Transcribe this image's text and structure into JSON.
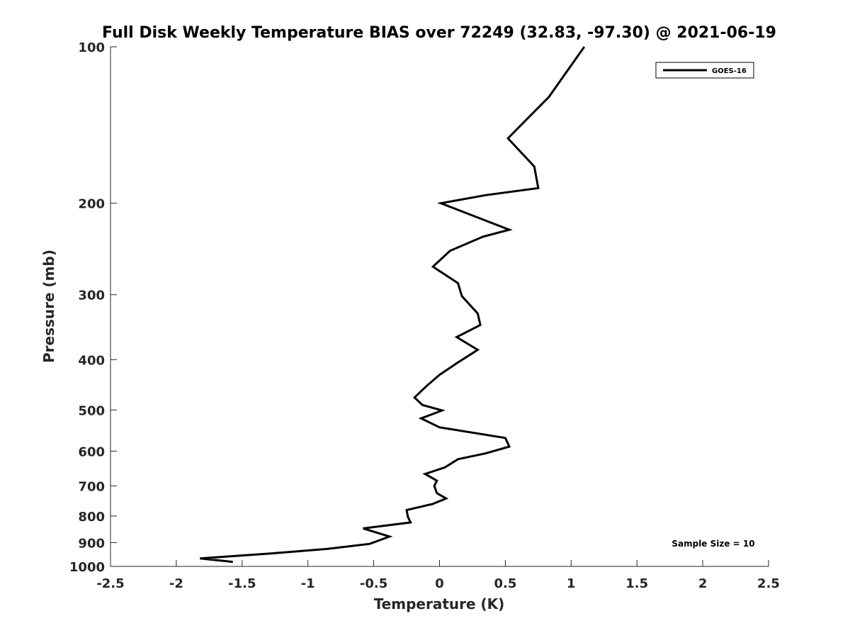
{
  "chart_data": {
    "type": "line",
    "title": "Full Disk Weekly Temperature BIAS over 72249 (32.83, -97.30) @ 2021-06-19",
    "xlabel": "Temperature (K)",
    "ylabel": "Pressure (mb)",
    "xlim": [
      -2.5,
      2.5
    ],
    "ylim": [
      100,
      1000
    ],
    "y_scale": "log",
    "y_reversed": true,
    "grid": false,
    "legend_position": "top-right",
    "x_ticks": [
      -2.5,
      -2,
      -1.5,
      -1,
      -0.5,
      0,
      0.5,
      1,
      1.5,
      2,
      2.5
    ],
    "x_tick_labels": [
      "-2.5",
      "-2",
      "-1.5",
      "-1",
      "-0.5",
      "0",
      "0.5",
      "1",
      "1.5",
      "2",
      "2.5"
    ],
    "y_ticks": [
      100,
      200,
      300,
      400,
      500,
      600,
      700,
      800,
      900,
      1000
    ],
    "y_tick_labels": [
      "100",
      "200",
      "300",
      "400",
      "500",
      "600",
      "700",
      "800",
      "900",
      "1000"
    ],
    "annotation": "Sample Size = 10",
    "series": [
      {
        "name": "GOES-16",
        "color": "#000000",
        "points": [
          {
            "x": 1.1,
            "y": 100
          },
          {
            "x": 0.83,
            "y": 125
          },
          {
            "x": 0.52,
            "y": 150
          },
          {
            "x": 0.72,
            "y": 170
          },
          {
            "x": 0.75,
            "y": 187
          },
          {
            "x": 0.35,
            "y": 193
          },
          {
            "x": 0.01,
            "y": 200
          },
          {
            "x": 0.53,
            "y": 225
          },
          {
            "x": 0.33,
            "y": 232
          },
          {
            "x": 0.08,
            "y": 247
          },
          {
            "x": -0.05,
            "y": 265
          },
          {
            "x": 0.14,
            "y": 285
          },
          {
            "x": 0.17,
            "y": 302
          },
          {
            "x": 0.29,
            "y": 326
          },
          {
            "x": 0.31,
            "y": 343
          },
          {
            "x": 0.13,
            "y": 362
          },
          {
            "x": 0.29,
            "y": 383
          },
          {
            "x": 0.14,
            "y": 405
          },
          {
            "x": 0.0,
            "y": 428
          },
          {
            "x": -0.1,
            "y": 450
          },
          {
            "x": -0.19,
            "y": 473
          },
          {
            "x": -0.13,
            "y": 489
          },
          {
            "x": 0.02,
            "y": 501
          },
          {
            "x": -0.14,
            "y": 519
          },
          {
            "x": 0.0,
            "y": 540
          },
          {
            "x": 0.5,
            "y": 566
          },
          {
            "x": 0.53,
            "y": 588
          },
          {
            "x": 0.35,
            "y": 606
          },
          {
            "x": 0.14,
            "y": 622
          },
          {
            "x": 0.04,
            "y": 645
          },
          {
            "x": -0.11,
            "y": 664
          },
          {
            "x": -0.02,
            "y": 684
          },
          {
            "x": -0.04,
            "y": 700
          },
          {
            "x": -0.02,
            "y": 723
          },
          {
            "x": 0.05,
            "y": 740
          },
          {
            "x": -0.05,
            "y": 758
          },
          {
            "x": -0.25,
            "y": 779
          },
          {
            "x": -0.24,
            "y": 803
          },
          {
            "x": -0.22,
            "y": 823
          },
          {
            "x": -0.58,
            "y": 845
          },
          {
            "x": -0.38,
            "y": 876
          },
          {
            "x": -0.53,
            "y": 905
          },
          {
            "x": -0.85,
            "y": 925
          },
          {
            "x": -1.3,
            "y": 945
          },
          {
            "x": -1.82,
            "y": 965
          },
          {
            "x": -1.57,
            "y": 980
          }
        ]
      }
    ]
  }
}
